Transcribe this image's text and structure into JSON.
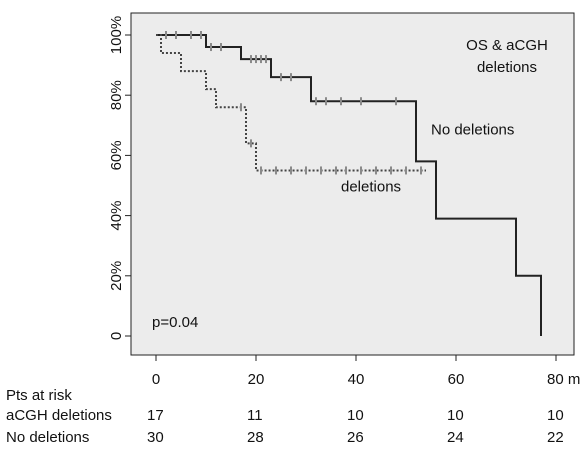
{
  "chart_data": {
    "type": "line",
    "subtype": "kaplan-meier step curves",
    "title_lines": [
      "OS & aCGH",
      "deletions"
    ],
    "xlabel": "",
    "ylabel": "",
    "xlim": [
      0,
      80
    ],
    "ylim": [
      0,
      100
    ],
    "x_ticks": [
      0,
      20,
      40,
      60,
      80
    ],
    "x_tick_labels": [
      "0",
      "20",
      "40",
      "60",
      "80 m"
    ],
    "y_ticks": [
      0,
      20,
      40,
      60,
      80,
      100
    ],
    "y_tick_labels": [
      "0",
      "20%",
      "40%",
      "60%",
      "80%",
      "100%"
    ],
    "grid": false,
    "background": "#ececec",
    "pvalue_label": "p=0.04",
    "series": [
      {
        "name": "No deletions",
        "line_style": "solid",
        "color": "#222222",
        "steps": [
          [
            0,
            100
          ],
          [
            10,
            96
          ],
          [
            17,
            92
          ],
          [
            23,
            86
          ],
          [
            31,
            78
          ],
          [
            52,
            58
          ],
          [
            56,
            39
          ],
          [
            72,
            20
          ],
          [
            77,
            0
          ]
        ],
        "end_x": 77,
        "censored": [
          [
            2,
            100
          ],
          [
            4,
            100
          ],
          [
            7,
            100
          ],
          [
            9,
            100
          ],
          [
            11,
            96
          ],
          [
            13,
            96
          ],
          [
            19,
            92
          ],
          [
            20,
            92
          ],
          [
            21,
            92
          ],
          [
            22,
            92
          ],
          [
            25,
            86
          ],
          [
            27,
            86
          ],
          [
            32,
            78
          ],
          [
            34,
            78
          ],
          [
            37,
            78
          ],
          [
            41,
            78
          ],
          [
            48,
            78
          ]
        ]
      },
      {
        "name": "deletions",
        "line_style": "dotted",
        "color": "#444444",
        "steps": [
          [
            0,
            100
          ],
          [
            1,
            94
          ],
          [
            5,
            88
          ],
          [
            10,
            82
          ],
          [
            12,
            76
          ],
          [
            18,
            64
          ],
          [
            20,
            55
          ]
        ],
        "end_x": 54,
        "censored": [
          [
            17,
            76
          ],
          [
            19,
            64
          ],
          [
            21,
            55
          ],
          [
            24,
            55
          ],
          [
            27,
            55
          ],
          [
            30,
            55
          ],
          [
            33,
            55
          ],
          [
            36,
            55
          ],
          [
            38,
            55
          ],
          [
            41,
            55
          ],
          [
            44,
            55
          ],
          [
            47,
            55
          ],
          [
            50,
            55
          ],
          [
            53,
            55
          ]
        ]
      }
    ],
    "annotations": [
      {
        "text": "No deletions",
        "x": 55,
        "y": 67
      },
      {
        "text": "deletions",
        "x": 37,
        "y": 48
      }
    ]
  },
  "risk_table": {
    "header": "Pts at risk",
    "rows": [
      {
        "label": "aCGH deletions",
        "values": [
          "17",
          "11",
          "10",
          "10",
          "10"
        ]
      },
      {
        "label": "No deletions",
        "values": [
          "30",
          "28",
          "26",
          "24",
          "22"
        ]
      }
    ]
  }
}
